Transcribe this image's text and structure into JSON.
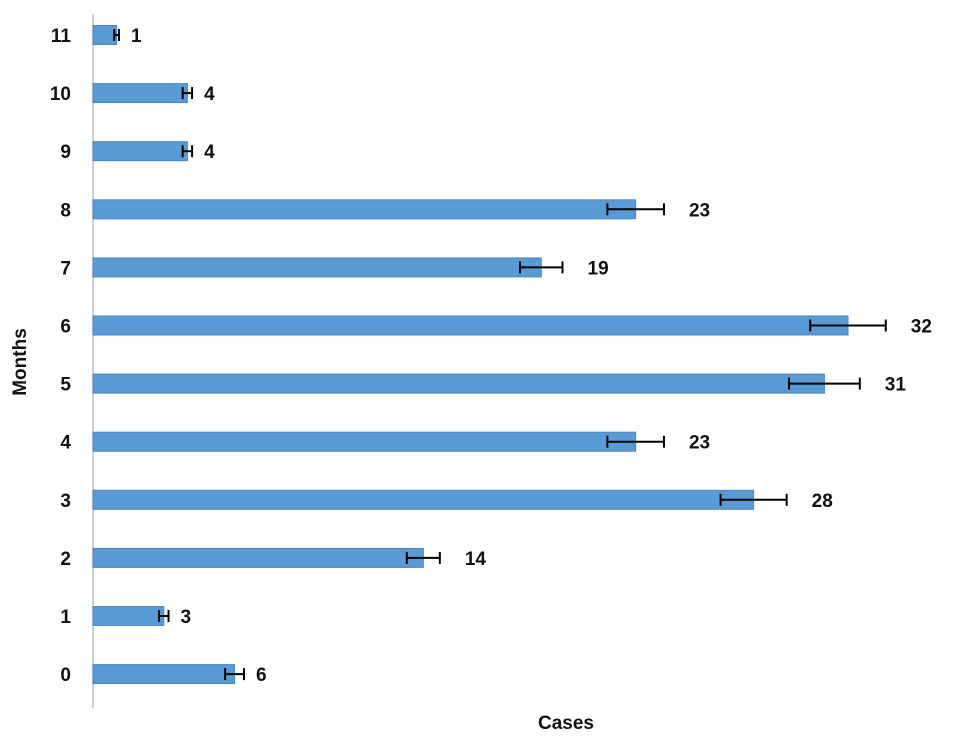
{
  "chart_data": {
    "type": "bar",
    "orientation": "horizontal",
    "categories": [
      "0",
      "1",
      "2",
      "3",
      "4",
      "5",
      "6",
      "7",
      "8",
      "9",
      "10",
      "11"
    ],
    "values": [
      6,
      3,
      14,
      28,
      23,
      31,
      32,
      19,
      23,
      4,
      4,
      1
    ],
    "error": [
      0.4,
      0.2,
      0.7,
      1.4,
      1.2,
      1.5,
      1.6,
      0.9,
      1.2,
      0.2,
      0.2,
      0.1
    ],
    "data_labels": [
      "6",
      "3",
      "14",
      "28",
      "23",
      "31",
      "32",
      "19",
      "23",
      "4",
      "4",
      "1"
    ],
    "title": "",
    "xlabel": "Cases",
    "ylabel": "Months",
    "xlim": [
      0,
      37
    ],
    "grid": false,
    "colors": {
      "bar": "#5b9bd5",
      "bar_edge": "#4a86bf",
      "error_bar": "#000000",
      "axis": "#bfbfbf"
    }
  }
}
